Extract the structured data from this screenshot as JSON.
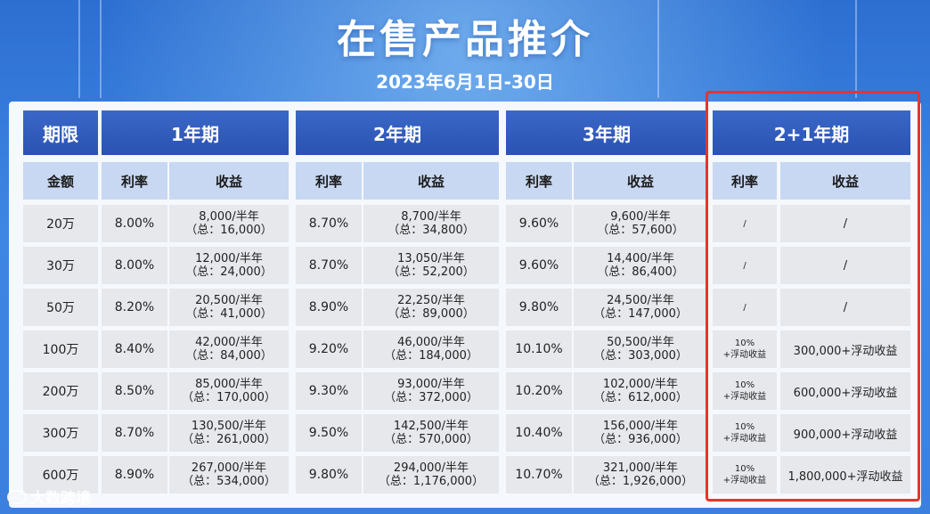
{
  "title": "在售产品推介",
  "subtitle": "2023年6月1日-30日",
  "header": {
    "term": "期限",
    "amount": "金额",
    "rate": "利率",
    "income": "收益",
    "periods": [
      "1年期",
      "2年期",
      "3年期",
      "2+1年期"
    ]
  },
  "rows": [
    {
      "amount": "20万",
      "y1": {
        "rate": "8.00%",
        "l1": "8,000/半年",
        "l2": "（总：16,000）"
      },
      "y2": {
        "rate": "8.70%",
        "l1": "8,700/半年",
        "l2": "（总：34,800）"
      },
      "y3": {
        "rate": "9.60%",
        "l1": "9,600/半年",
        "l2": "（总：57,600）"
      },
      "y21": {
        "rate_a": "/",
        "rate_b": "",
        "income": "/"
      }
    },
    {
      "amount": "30万",
      "y1": {
        "rate": "8.00%",
        "l1": "12,000/半年",
        "l2": "（总：24,000）"
      },
      "y2": {
        "rate": "8.70%",
        "l1": "13,050/半年",
        "l2": "（总：52,200）"
      },
      "y3": {
        "rate": "9.60%",
        "l1": "14,400/半年",
        "l2": "（总：86,400）"
      },
      "y21": {
        "rate_a": "/",
        "rate_b": "",
        "income": "/"
      }
    },
    {
      "amount": "50万",
      "y1": {
        "rate": "8.20%",
        "l1": "20,500/半年",
        "l2": "（总：41,000）"
      },
      "y2": {
        "rate": "8.90%",
        "l1": "22,250/半年",
        "l2": "（总：89,000）"
      },
      "y3": {
        "rate": "9.80%",
        "l1": "24,500/半年",
        "l2": "（总：147,000）"
      },
      "y21": {
        "rate_a": "/",
        "rate_b": "",
        "income": "/"
      }
    },
    {
      "amount": "100万",
      "y1": {
        "rate": "8.40%",
        "l1": "42,000/半年",
        "l2": "（总：84,000）"
      },
      "y2": {
        "rate": "9.20%",
        "l1": "46,000/半年",
        "l2": "（总：184,000）"
      },
      "y3": {
        "rate": "10.10%",
        "l1": "50,500/半年",
        "l2": "（总：303,000）"
      },
      "y21": {
        "rate_a": "10%",
        "rate_b": "+浮动收益",
        "income": "300,000+浮动收益"
      }
    },
    {
      "amount": "200万",
      "y1": {
        "rate": "8.50%",
        "l1": "85,000/半年",
        "l2": "（总：170,000）"
      },
      "y2": {
        "rate": "9.30%",
        "l1": "93,000/半年",
        "l2": "（总：372,000）"
      },
      "y3": {
        "rate": "10.20%",
        "l1": "102,000/半年",
        "l2": "（总：612,000）"
      },
      "y21": {
        "rate_a": "10%",
        "rate_b": "+浮动收益",
        "income": "600,000+浮动收益"
      }
    },
    {
      "amount": "300万",
      "y1": {
        "rate": "8.70%",
        "l1": "130,500/半年",
        "l2": "（总：261,000）"
      },
      "y2": {
        "rate": "9.50%",
        "l1": "142,500/半年",
        "l2": "（总：570,000）"
      },
      "y3": {
        "rate": "10.40%",
        "l1": "156,000/半年",
        "l2": "（总：936,000）"
      },
      "y21": {
        "rate_a": "10%",
        "rate_b": "+浮动收益",
        "income": "900,000+浮动收益"
      }
    },
    {
      "amount": "600万",
      "y1": {
        "rate": "8.90%",
        "l1": "267,000/半年",
        "l2": "（总：534,000）"
      },
      "y2": {
        "rate": "9.80%",
        "l1": "294,000/半年",
        "l2": "（总：1,176,000）"
      },
      "y3": {
        "rate": "10.70%",
        "l1": "321,000/半年",
        "l2": "（总：1,926,000）"
      },
      "y21": {
        "rate_a": "10%",
        "rate_b": "+浮动收益",
        "income": "1,800,000+浮动收益"
      }
    }
  ],
  "watermark": "大数跨境"
}
